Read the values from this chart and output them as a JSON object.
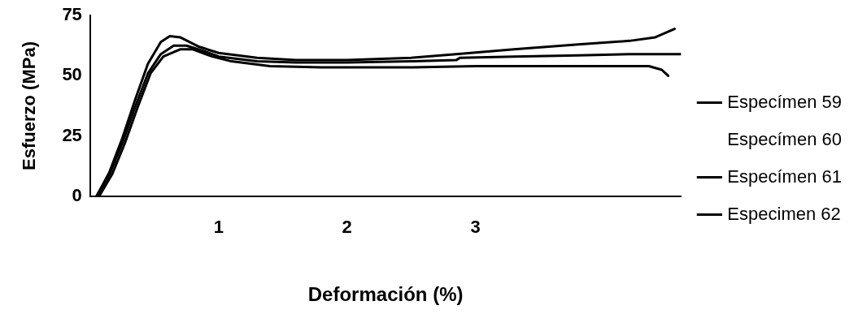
{
  "chart_data": {
    "type": "line",
    "xlabel": "Deformación (%)",
    "ylabel": "Esfuerzo (MPa)",
    "xlim": [
      0,
      4.6
    ],
    "xticks": [
      1,
      2,
      3
    ],
    "ylim": [
      0,
      75
    ],
    "yticks": [
      0,
      25,
      50,
      75
    ],
    "grid": false,
    "legend": "right",
    "marker": "none",
    "line_style": "solid",
    "series": [
      {
        "name": "Especímen 59",
        "color": "#000000",
        "x": [
          0.05,
          0.15,
          0.25,
          0.35,
          0.45,
          0.55,
          0.62,
          0.7,
          0.85,
          1.0,
          1.3,
          1.6,
          2.0,
          2.5,
          2.85,
          3.3,
          3.8,
          4.2,
          4.4,
          4.55
        ],
        "values": [
          0,
          10,
          24,
          40,
          55,
          64,
          66.5,
          66,
          62,
          59.5,
          57.5,
          56.5,
          56.5,
          57.5,
          59,
          61,
          63,
          64.5,
          66,
          69.5
        ]
      },
      {
        "name": "Especímen 60"
      },
      {
        "name": "Especímen 61",
        "color": "#000000",
        "x": [
          0.05,
          0.15,
          0.25,
          0.35,
          0.45,
          0.55,
          0.65,
          0.75,
          0.9,
          1.0,
          1.3,
          1.6,
          2.0,
          2.5,
          2.85,
          2.88,
          3.3,
          3.8,
          4.2,
          4.6
        ],
        "values": [
          0,
          9,
          22,
          37,
          51,
          59,
          62.5,
          62.5,
          60,
          58,
          56,
          55.5,
          55.5,
          56,
          56.5,
          57.5,
          58,
          58.5,
          59,
          59
        ]
      },
      {
        "name": "Especimen 62",
        "color": "#000000",
        "x": [
          0.07,
          0.17,
          0.27,
          0.37,
          0.47,
          0.57,
          0.7,
          0.8,
          0.95,
          1.1,
          1.4,
          1.8,
          2.5,
          3.0,
          3.5,
          4.0,
          4.35,
          4.45,
          4.5
        ],
        "values": [
          0,
          9,
          22,
          37,
          51,
          58,
          61,
          61,
          58,
          56,
          54,
          53.5,
          53.5,
          54,
          54,
          54,
          54,
          52.5,
          50
        ]
      }
    ]
  }
}
